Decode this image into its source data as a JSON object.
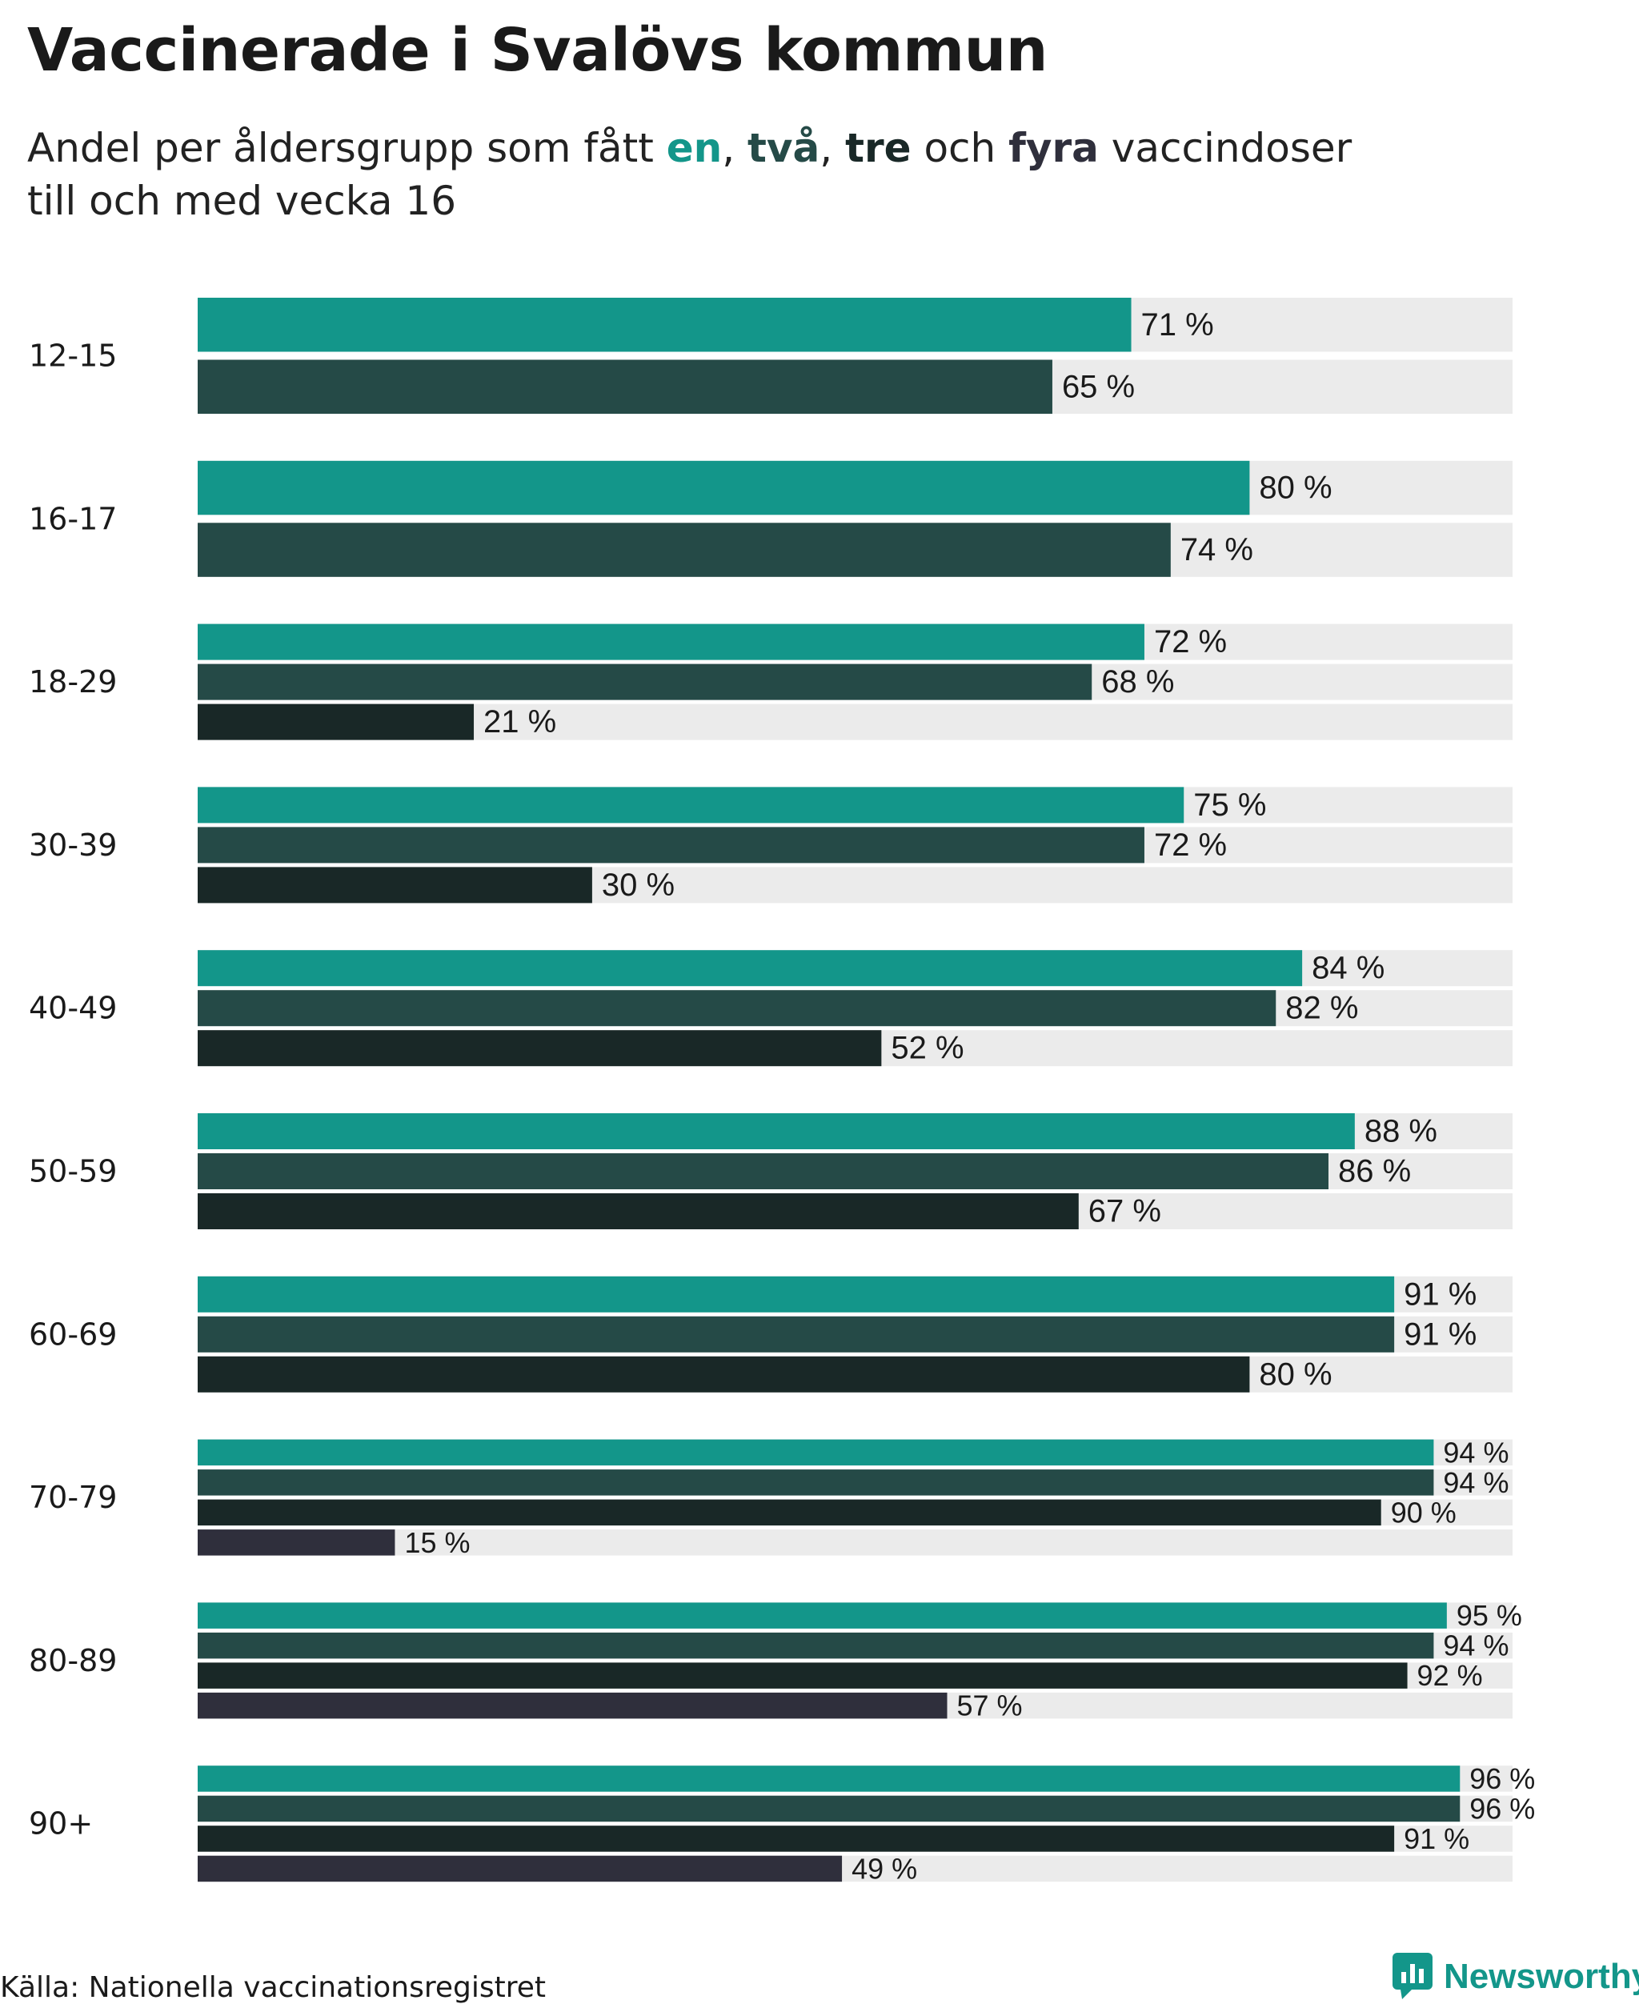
{
  "header": {
    "title": "Vaccinerade i Svalövs kommun",
    "subtitle_prefix": "Andel per åldersgrupp som fått ",
    "subtitle_k1": "en",
    "subtitle_sep1": ", ",
    "subtitle_k2": "två",
    "subtitle_sep2": ", ",
    "subtitle_k3": "tre",
    "subtitle_sep3": " och ",
    "subtitle_k4": "fyra",
    "subtitle_line1_end": " vaccindoser",
    "subtitle_line2": "till och med vecka 16"
  },
  "footer": {
    "source": "Källa: Nationella vaccinationsregistret",
    "brand": "Newsworthy",
    "logo_icon": "bar-chart-icon"
  },
  "colors": {
    "dose1": "#13968a",
    "dose2": "#254a47",
    "dose3": "#192827",
    "dose4": "#2f2f3c",
    "track": "#ebebeb"
  },
  "chart_data": {
    "type": "bar",
    "orientation": "horizontal",
    "title": "Vaccinerade i Svalövs kommun",
    "subtitle": "Andel per åldersgrupp som fått en, två, tre och fyra vaccindoser till och med vecka 16",
    "xlim": [
      0,
      100
    ],
    "value_suffix": " %",
    "categories": [
      "12-15",
      "16-17",
      "18-29",
      "30-39",
      "40-49",
      "50-59",
      "60-69",
      "70-79",
      "80-89",
      "90+"
    ],
    "series": [
      {
        "name": "en",
        "values": [
          71,
          80,
          72,
          75,
          84,
          88,
          91,
          94,
          95,
          96
        ]
      },
      {
        "name": "två",
        "values": [
          65,
          74,
          68,
          72,
          82,
          86,
          91,
          94,
          94,
          96
        ]
      },
      {
        "name": "tre",
        "values": [
          null,
          null,
          21,
          30,
          52,
          67,
          80,
          90,
          92,
          91
        ]
      },
      {
        "name": "fyra",
        "values": [
          null,
          null,
          null,
          null,
          null,
          null,
          null,
          15,
          57,
          49
        ]
      }
    ],
    "value_labels": [
      [
        "71 %",
        "65 %"
      ],
      [
        "80 %",
        "74 %"
      ],
      [
        "72 %",
        "68 %",
        "21 %"
      ],
      [
        "75 %",
        "72 %",
        "30 %"
      ],
      [
        "84 %",
        "82 %",
        "52 %"
      ],
      [
        "88 %",
        "86 %",
        "67 %"
      ],
      [
        "91 %",
        "91 %",
        "80 %"
      ],
      [
        "94 %",
        "94 %",
        "90 %",
        "15 %"
      ],
      [
        "95 %",
        "94 %",
        "92 %",
        "57 %"
      ],
      [
        "96 %",
        "96 %",
        "91 %",
        "49 %"
      ]
    ],
    "grid": false,
    "legend": "none"
  }
}
